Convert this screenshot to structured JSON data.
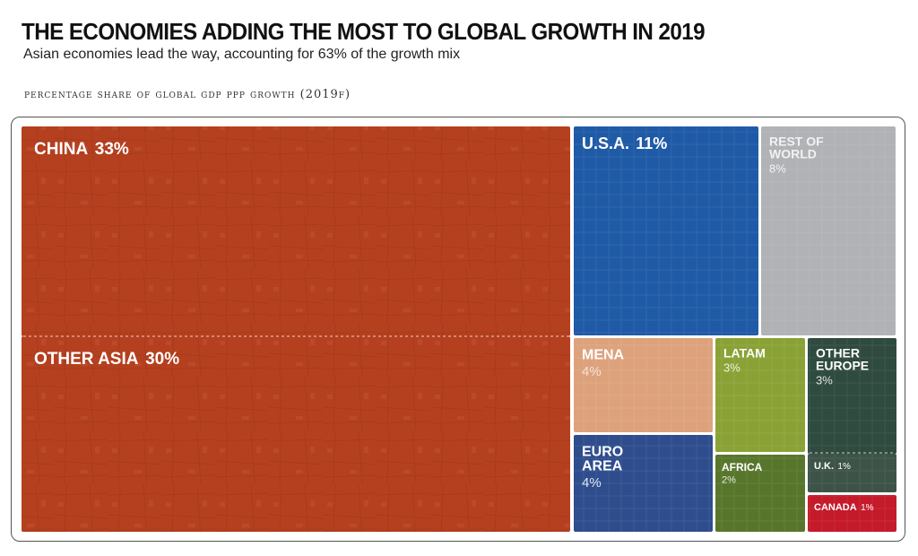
{
  "header": {
    "title": "THE ECONOMIES ADDING THE MOST TO GLOBAL GROWTH IN 2019",
    "subtitle": "Asian economies lead the way, accounting for 63% of the growth mix",
    "chart_label": "percentage share of global gdp ppp growth (2019f)"
  },
  "chart_data": {
    "type": "treemap",
    "title": "THE ECONOMIES ADDING THE MOST TO GLOBAL GROWTH IN 2019",
    "subtitle": "Asian economies lead the way, accounting for 63% of the growth mix",
    "metric": "percentage share of global gdp ppp growth (2019f)",
    "unit": "%",
    "items": [
      {
        "label": "CHINA",
        "value": 33,
        "value_label": "33%",
        "color": "#b5401f"
      },
      {
        "label": "OTHER ASIA",
        "value": 30,
        "value_label": "30%",
        "color": "#b5401f"
      },
      {
        "label": "U.S.A.",
        "value": 11,
        "value_label": "11%",
        "color": "#1f5aa6"
      },
      {
        "label": "REST OF WORLD",
        "value": 8,
        "value_label": "8%",
        "color": "#b1b2b6"
      },
      {
        "label": "MENA",
        "value": 4,
        "value_label": "4%",
        "color": "#dda27c"
      },
      {
        "label": "EURO AREA",
        "value": 4,
        "value_label": "4%",
        "color": "#2f4d8d"
      },
      {
        "label": "LATAM",
        "value": 3,
        "value_label": "3%",
        "color": "#8aa235"
      },
      {
        "label": "OTHER EUROPE",
        "value": 3,
        "value_label": "3%",
        "color": "#2f4a3e"
      },
      {
        "label": "AFRICA",
        "value": 2,
        "value_label": "2%",
        "color": "#58762b"
      },
      {
        "label": "U.K.",
        "value": 1,
        "value_label": "1%",
        "color": "#3d5348"
      },
      {
        "label": "CANADA",
        "value": 1,
        "value_label": "1%",
        "color": "#c41a2a"
      }
    ]
  }
}
